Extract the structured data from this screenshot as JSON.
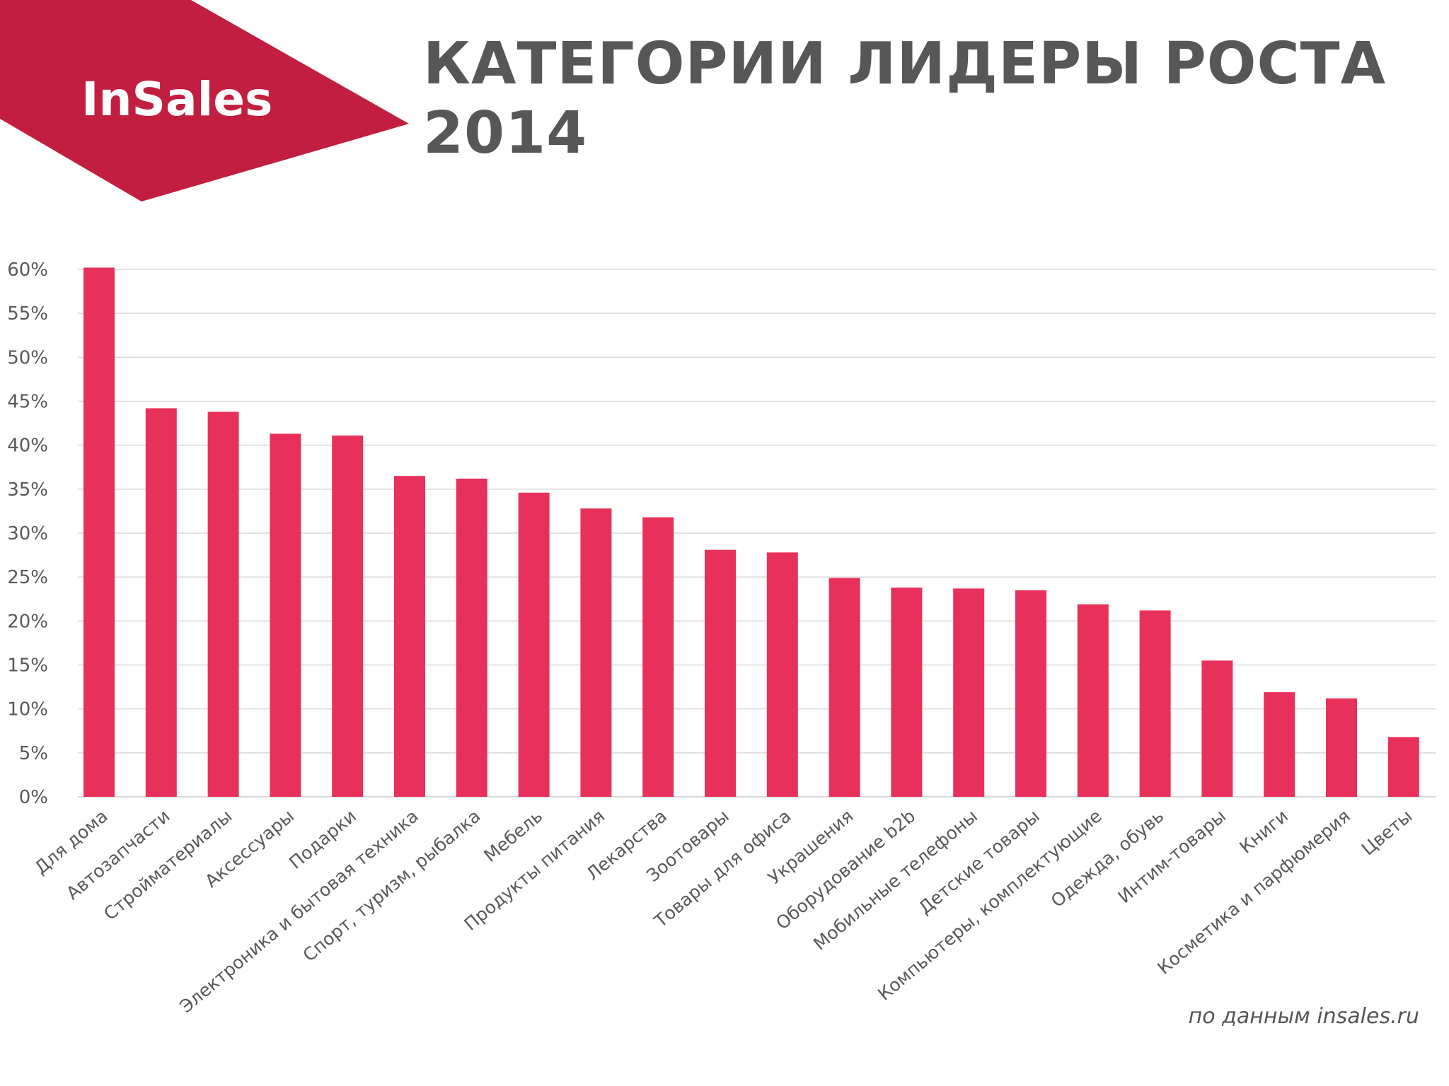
{
  "brand": {
    "logo_text": "InSales",
    "banner_color": "#c21e3f",
    "logo_text_color": "#ffffff"
  },
  "title": {
    "line1": "КАТЕГОРИИ ЛИДЕРЫ РОСТА",
    "line2": "2014"
  },
  "source_note": "по данным insales.ru",
  "colors": {
    "bar": "#e8315a",
    "title": "#575757",
    "axis_text": "#595959",
    "grid": "#d9d9d9"
  },
  "chart_data": {
    "type": "bar",
    "title": "",
    "xlabel": "",
    "ylabel": "",
    "categories": [
      "Для дома",
      "Автозапчасти",
      "Стройматериалы",
      "Аксессуары",
      "Подарки",
      "Электроника и бытовая техника",
      "Спорт, туризм, рыбалка",
      "Мебель",
      "Продукты питания",
      "Лекарства",
      "Зоотовары",
      "Товары для офиса",
      "Украшения",
      "Оборудование b2b",
      "Мобильные телефоны",
      "Детские товары",
      "Компьютеры, комплектующие",
      "Одежда, обувь",
      "Интим-товары",
      "Книги",
      "Косметика и парфюмерия",
      "Цветы"
    ],
    "values": [
      60.2,
      44.2,
      43.8,
      41.3,
      41.1,
      36.5,
      36.2,
      34.6,
      32.8,
      31.8,
      28.1,
      27.8,
      24.9,
      23.8,
      23.7,
      23.5,
      21.9,
      21.2,
      15.5,
      11.9,
      11.2,
      6.8
    ],
    "ylim": [
      0,
      60
    ],
    "yticks": [
      "0%",
      "5%",
      "10%",
      "15%",
      "20%",
      "25%",
      "30%",
      "35%",
      "40%",
      "45%",
      "50%",
      "55%",
      "60%"
    ],
    "grid": true,
    "legend": "none"
  }
}
